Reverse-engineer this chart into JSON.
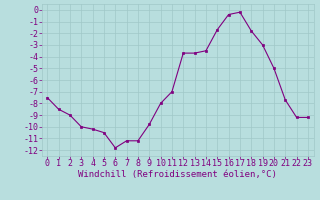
{
  "x": [
    0,
    1,
    2,
    3,
    4,
    5,
    6,
    7,
    8,
    9,
    10,
    11,
    12,
    13,
    14,
    15,
    16,
    17,
    18,
    19,
    20,
    21,
    22,
    23
  ],
  "y": [
    -7.5,
    -8.5,
    -9.0,
    -10.0,
    -10.2,
    -10.5,
    -11.8,
    -11.2,
    -11.2,
    -9.8,
    -8.0,
    -7.0,
    -3.7,
    -3.7,
    -3.5,
    -1.7,
    -0.4,
    -0.2,
    -1.8,
    -3.0,
    -5.0,
    -7.7,
    -9.2,
    -9.2
  ],
  "line_color": "#800080",
  "marker": "s",
  "marker_size": 2.0,
  "bg_color": "#b8dede",
  "grid_color": "#a0c8c8",
  "xlabel": "Windchill (Refroidissement éolien,°C)",
  "ylim": [
    -12.5,
    0.5
  ],
  "xlim": [
    -0.5,
    23.5
  ],
  "yticks": [
    0,
    -1,
    -2,
    -3,
    -4,
    -5,
    -6,
    -7,
    -8,
    -9,
    -10,
    -11,
    -12
  ],
  "xticks": [
    0,
    1,
    2,
    3,
    4,
    5,
    6,
    7,
    8,
    9,
    10,
    11,
    12,
    13,
    14,
    15,
    16,
    17,
    18,
    19,
    20,
    21,
    22,
    23
  ],
  "tick_color": "#800080",
  "label_color": "#800080",
  "label_fontsize": 6.5,
  "tick_fontsize": 6.0
}
